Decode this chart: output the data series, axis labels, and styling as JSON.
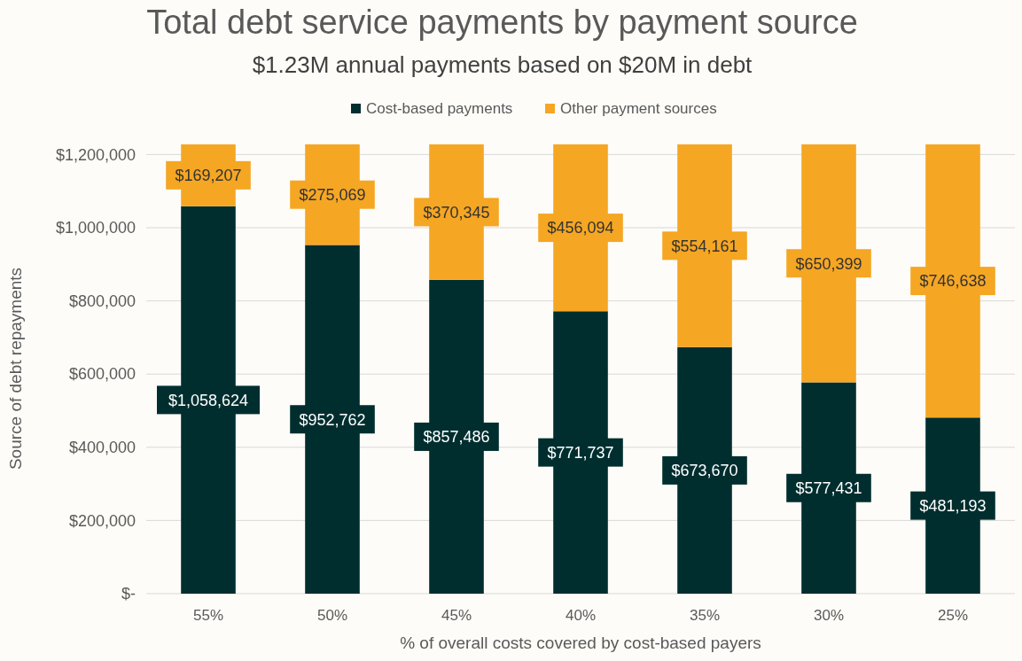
{
  "chart_data": {
    "type": "bar",
    "title": "Total debt service payments by payment source",
    "subtitle": "$1.23M annual payments based on $20M in debt",
    "xlabel": "% of overall costs covered by cost-based payers",
    "ylabel": "Source of debt repayments",
    "categories": [
      "55%",
      "50%",
      "45%",
      "40%",
      "35%",
      "30%",
      "25%"
    ],
    "stacked": true,
    "series": [
      {
        "name": "Cost-based payments",
        "color": "#002e2f",
        "values": [
          1058624,
          952762,
          857486,
          771737,
          673670,
          577431,
          481193
        ],
        "value_labels": [
          "$1,058,624",
          "$952,762",
          "$857,486",
          "$771,737",
          "$673,670",
          "$577,431",
          "$481,193"
        ]
      },
      {
        "name": "Other payment sources",
        "color": "#f5a623",
        "values": [
          169207,
          275069,
          370345,
          456094,
          554161,
          650399,
          746638
        ],
        "value_labels": [
          "$169,207",
          "$275,069",
          "$370,345",
          "$456,094",
          "$554,161",
          "$650,399",
          "$746,638"
        ]
      }
    ],
    "ylim": [
      0,
      1230000
    ],
    "yticks": [
      {
        "value": 0,
        "label": "$-"
      },
      {
        "value": 200000,
        "label": "$200,000"
      },
      {
        "value": 400000,
        "label": "$400,000"
      },
      {
        "value": 600000,
        "label": "$600,000"
      },
      {
        "value": 800000,
        "label": "$800,000"
      },
      {
        "value": 1000000,
        "label": "$1,000,000"
      },
      {
        "value": 1200000,
        "label": "$1,200,000"
      }
    ],
    "grid": "y",
    "legend": "top"
  }
}
